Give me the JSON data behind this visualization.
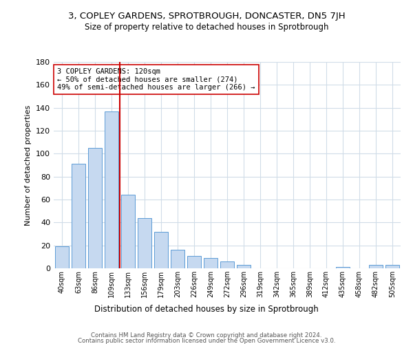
{
  "title": "3, COPLEY GARDENS, SPROTBROUGH, DONCASTER, DN5 7JH",
  "subtitle": "Size of property relative to detached houses in Sprotbrough",
  "xlabel": "Distribution of detached houses by size in Sprotbrough",
  "ylabel": "Number of detached properties",
  "bar_color": "#c6d9f0",
  "bar_edge_color": "#5b9bd5",
  "categories": [
    "40sqm",
    "63sqm",
    "86sqm",
    "109sqm",
    "133sqm",
    "156sqm",
    "179sqm",
    "203sqm",
    "226sqm",
    "249sqm",
    "272sqm",
    "296sqm",
    "319sqm",
    "342sqm",
    "365sqm",
    "389sqm",
    "412sqm",
    "435sqm",
    "458sqm",
    "482sqm",
    "505sqm"
  ],
  "values": [
    19,
    91,
    105,
    137,
    64,
    44,
    32,
    16,
    11,
    9,
    6,
    3,
    0,
    0,
    0,
    0,
    0,
    1,
    0,
    3,
    3
  ],
  "ylim": [
    0,
    180
  ],
  "yticks": [
    0,
    20,
    40,
    60,
    80,
    100,
    120,
    140,
    160,
    180
  ],
  "vline_x": 3.5,
  "vline_color": "#cc0000",
  "annotation_title": "3 COPLEY GARDENS: 120sqm",
  "annotation_line1": "← 50% of detached houses are smaller (274)",
  "annotation_line2": "49% of semi-detached houses are larger (266) →",
  "annotation_box_color": "#ffffff",
  "annotation_box_edge": "#cc0000",
  "footer1": "Contains HM Land Registry data © Crown copyright and database right 2024.",
  "footer2": "Contains public sector information licensed under the Open Government Licence v3.0.",
  "background_color": "#ffffff",
  "grid_color": "#d0dce8"
}
